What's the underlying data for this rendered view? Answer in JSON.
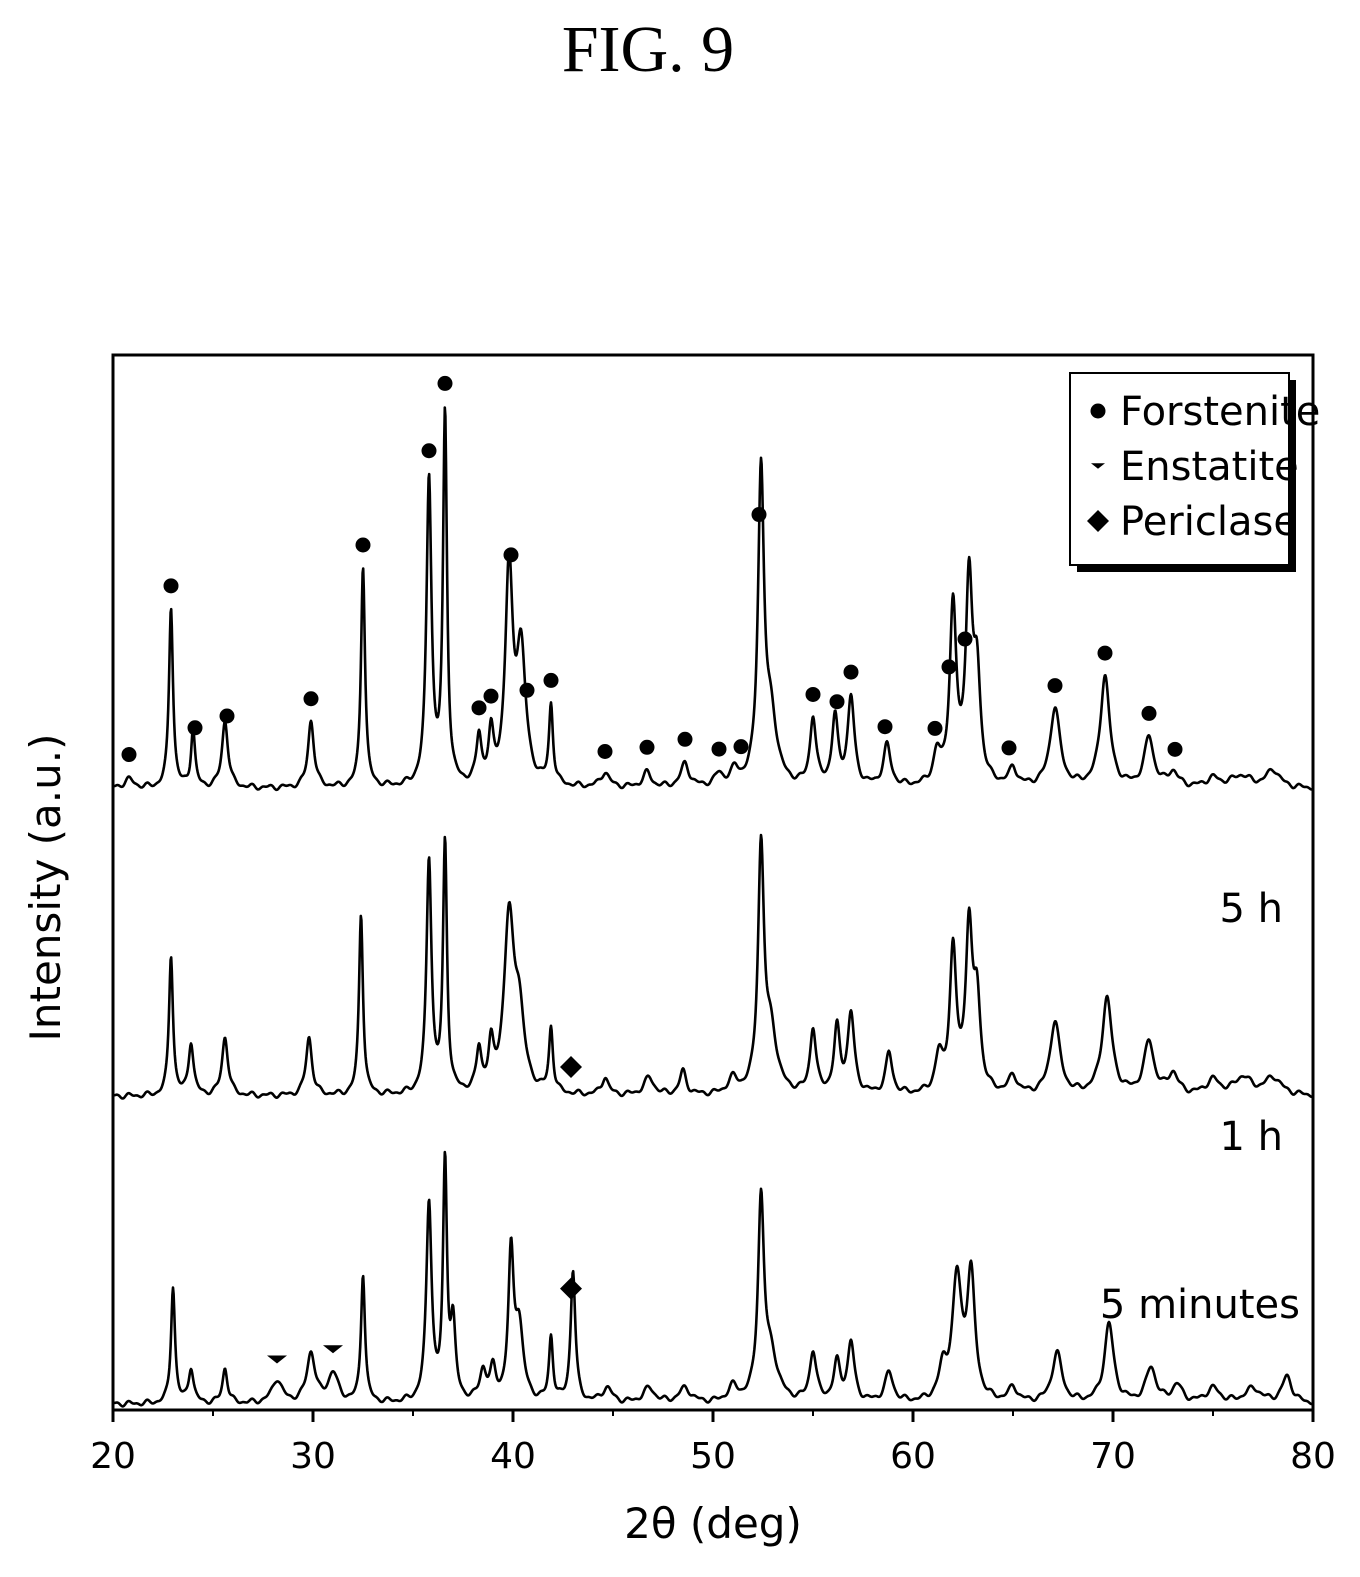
{
  "figure_title": "FIG. 9",
  "chart_data": {
    "type": "line",
    "xlabel": "2θ (deg)",
    "ylabel": "Intensity (a.u.)",
    "xlim": [
      20,
      80
    ],
    "ylim": [
      0,
      3.6
    ],
    "x_ticks": [
      "20",
      "30",
      "40",
      "50",
      "60",
      "70",
      "80"
    ],
    "grid": false,
    "legend_position": "top-right",
    "legend": [
      {
        "label": "Forstenite",
        "marker": "circle"
      },
      {
        "label": "Enstatite",
        "marker": "triangle-down"
      },
      {
        "label": "Periclase",
        "marker": "diamond"
      }
    ],
    "series": [
      {
        "name": "5 minutes",
        "offset": 0,
        "baseline": 0.02,
        "peaks": [
          [
            23.0,
            0.4,
            0.12
          ],
          [
            23.9,
            0.12,
            0.15
          ],
          [
            25.6,
            0.12,
            0.15
          ],
          [
            28.2,
            0.08,
            0.3
          ],
          [
            29.9,
            0.17,
            0.25
          ],
          [
            31.0,
            0.1,
            0.3
          ],
          [
            32.5,
            0.44,
            0.12
          ],
          [
            35.8,
            0.68,
            0.16
          ],
          [
            36.6,
            0.8,
            0.12
          ],
          [
            37.0,
            0.25,
            0.15
          ],
          [
            38.5,
            0.1,
            0.2
          ],
          [
            39.0,
            0.1,
            0.18
          ],
          [
            39.9,
            0.48,
            0.16
          ],
          [
            40.3,
            0.25,
            0.25
          ],
          [
            41.9,
            0.22,
            0.12
          ],
          [
            43.0,
            0.45,
            0.14
          ],
          [
            44.7,
            0.05,
            0.3
          ],
          [
            46.8,
            0.05,
            0.35
          ],
          [
            48.6,
            0.05,
            0.35
          ],
          [
            51.0,
            0.05,
            0.3
          ],
          [
            52.4,
            0.67,
            0.18
          ],
          [
            52.9,
            0.15,
            0.4
          ],
          [
            55.0,
            0.17,
            0.2
          ],
          [
            56.2,
            0.13,
            0.2
          ],
          [
            56.9,
            0.2,
            0.2
          ],
          [
            58.8,
            0.1,
            0.25
          ],
          [
            61.5,
            0.1,
            0.25
          ],
          [
            62.2,
            0.41,
            0.28
          ],
          [
            62.9,
            0.42,
            0.24
          ],
          [
            65.0,
            0.05,
            0.25
          ],
          [
            67.2,
            0.17,
            0.3
          ],
          [
            69.8,
            0.27,
            0.28
          ],
          [
            71.9,
            0.12,
            0.3
          ],
          [
            73.2,
            0.06,
            0.3
          ],
          [
            75.0,
            0.05,
            0.4
          ],
          [
            77.0,
            0.05,
            0.5
          ],
          [
            78.7,
            0.09,
            0.3
          ]
        ]
      },
      {
        "name": "1 h",
        "offset": 1.05,
        "baseline": 0.02,
        "peaks": [
          [
            22.9,
            0.48,
            0.12
          ],
          [
            23.9,
            0.18,
            0.15
          ],
          [
            25.6,
            0.2,
            0.18
          ],
          [
            29.8,
            0.2,
            0.18
          ],
          [
            32.4,
            0.62,
            0.12
          ],
          [
            35.8,
            0.8,
            0.15
          ],
          [
            36.6,
            0.85,
            0.12
          ],
          [
            38.3,
            0.14,
            0.15
          ],
          [
            38.9,
            0.14,
            0.15
          ],
          [
            39.8,
            0.58,
            0.3
          ],
          [
            40.3,
            0.25,
            0.3
          ],
          [
            41.9,
            0.22,
            0.12
          ],
          [
            44.6,
            0.06,
            0.2
          ],
          [
            46.8,
            0.06,
            0.3
          ],
          [
            48.5,
            0.08,
            0.2
          ],
          [
            51.0,
            0.05,
            0.3
          ],
          [
            52.4,
            0.82,
            0.18
          ],
          [
            52.9,
            0.2,
            0.35
          ],
          [
            55.0,
            0.22,
            0.18
          ],
          [
            56.2,
            0.22,
            0.18
          ],
          [
            56.9,
            0.27,
            0.2
          ],
          [
            58.8,
            0.14,
            0.2
          ],
          [
            61.3,
            0.12,
            0.22
          ],
          [
            62.0,
            0.48,
            0.2
          ],
          [
            62.8,
            0.55,
            0.2
          ],
          [
            63.2,
            0.3,
            0.2
          ],
          [
            65.0,
            0.06,
            0.25
          ],
          [
            67.1,
            0.25,
            0.3
          ],
          [
            69.7,
            0.33,
            0.3
          ],
          [
            71.8,
            0.18,
            0.3
          ],
          [
            73.0,
            0.07,
            0.3
          ],
          [
            75.0,
            0.05,
            0.4
          ],
          [
            76.5,
            0.06,
            0.5
          ],
          [
            78.0,
            0.06,
            0.5
          ]
        ]
      },
      {
        "name": "5 h",
        "offset": 2.1,
        "baseline": 0.02,
        "peaks": [
          [
            20.8,
            0.03,
            0.3
          ],
          [
            22.9,
            0.62,
            0.12
          ],
          [
            24.0,
            0.2,
            0.12
          ],
          [
            25.6,
            0.23,
            0.18
          ],
          [
            29.9,
            0.23,
            0.18
          ],
          [
            32.5,
            0.76,
            0.12
          ],
          [
            35.8,
            1.05,
            0.15
          ],
          [
            36.6,
            1.26,
            0.12
          ],
          [
            38.3,
            0.16,
            0.15
          ],
          [
            38.9,
            0.16,
            0.15
          ],
          [
            39.8,
            0.72,
            0.22
          ],
          [
            40.4,
            0.45,
            0.28
          ],
          [
            41.9,
            0.27,
            0.12
          ],
          [
            44.6,
            0.05,
            0.25
          ],
          [
            46.7,
            0.05,
            0.25
          ],
          [
            48.6,
            0.08,
            0.25
          ],
          [
            50.3,
            0.04,
            0.25
          ],
          [
            51.1,
            0.05,
            0.25
          ],
          [
            52.4,
            1.05,
            0.18
          ],
          [
            52.9,
            0.22,
            0.35
          ],
          [
            55.0,
            0.23,
            0.18
          ],
          [
            56.1,
            0.23,
            0.18
          ],
          [
            56.9,
            0.3,
            0.2
          ],
          [
            58.7,
            0.14,
            0.22
          ],
          [
            61.2,
            0.1,
            0.22
          ],
          [
            62.0,
            0.6,
            0.2
          ],
          [
            62.8,
            0.68,
            0.2
          ],
          [
            63.2,
            0.35,
            0.2
          ],
          [
            65.0,
            0.06,
            0.22
          ],
          [
            67.1,
            0.27,
            0.3
          ],
          [
            69.6,
            0.38,
            0.28
          ],
          [
            71.8,
            0.17,
            0.28
          ],
          [
            73.0,
            0.05,
            0.3
          ],
          [
            75.0,
            0.03,
            0.4
          ],
          [
            76.4,
            0.04,
            0.6
          ],
          [
            78.0,
            0.06,
            0.4
          ]
        ]
      }
    ],
    "markers": [
      {
        "phase": "Forstenite",
        "series": "5 h",
        "x": [
          20.8,
          22.9,
          24.1,
          25.7,
          29.9,
          32.5,
          35.8,
          36.6,
          38.3,
          38.9,
          39.9,
          40.7,
          41.9,
          44.6,
          46.7,
          48.6,
          50.3,
          51.4,
          52.3,
          55.0,
          56.2,
          56.9,
          58.6,
          61.1,
          61.8,
          62.6,
          64.8,
          67.1,
          69.6,
          71.8,
          73.1
        ]
      },
      {
        "phase": "Enstatite",
        "series": "5 minutes",
        "x": [
          28.2,
          31.0
        ]
      },
      {
        "phase": "Periclase",
        "series": "1 h",
        "x": [
          42.9
        ]
      },
      {
        "phase": "Periclase",
        "series": "5 minutes",
        "x": [
          42.9
        ]
      }
    ]
  }
}
